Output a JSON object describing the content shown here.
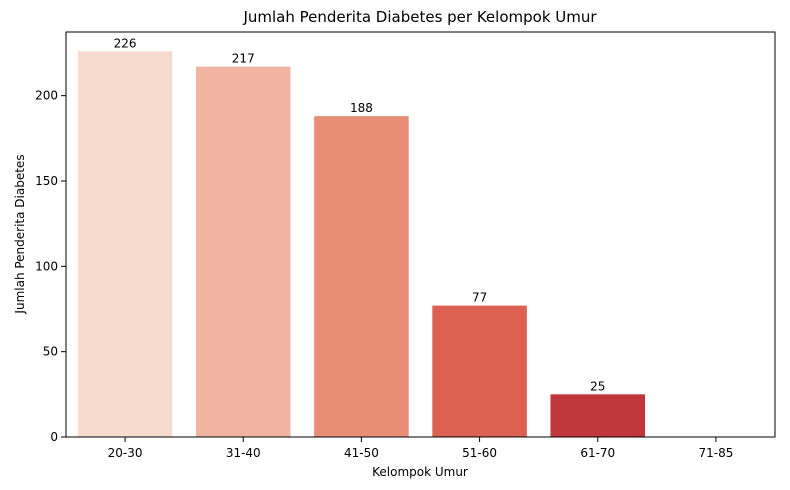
{
  "chart_data": {
    "type": "bar",
    "title": "Jumlah Penderita Diabetes per Kelompok Umur",
    "xlabel": "Kelompok Umur",
    "ylabel": "Jumlah Penderita Diabetes",
    "categories": [
      "20-30",
      "31-40",
      "41-50",
      "51-60",
      "61-70",
      "71-85"
    ],
    "values": [
      226,
      217,
      188,
      77,
      25,
      0
    ],
    "data_labels": [
      "226",
      "217",
      "188",
      "77",
      "25",
      ""
    ],
    "colors": [
      "#f7dbcf",
      "#f0b4a0",
      "#e88d76",
      "#dc6150",
      "#c1363a",
      "#9e1b2a"
    ],
    "ylim": [
      0,
      237.3
    ],
    "yticks": [
      0,
      50,
      100,
      150,
      200
    ],
    "grid": false,
    "legend": "none"
  }
}
